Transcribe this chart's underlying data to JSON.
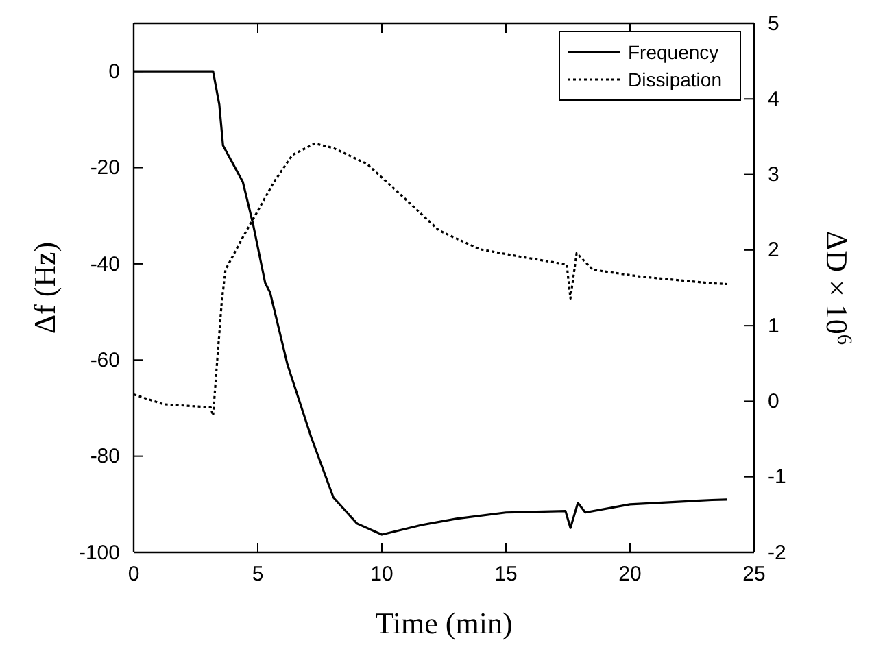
{
  "chart_data": {
    "type": "line",
    "xlabel": "Time (min)",
    "ylabel": "Δf (Hz)",
    "y2label": "ΔD × 10$^{6}$",
    "xlim": [
      0,
      25
    ],
    "xticks": [
      0,
      5,
      10,
      15,
      20,
      25
    ],
    "ylim": [
      -100,
      10
    ],
    "yticks": [
      -100,
      -80,
      -60,
      -40,
      -20,
      0
    ],
    "y2lim": [
      -2,
      5
    ],
    "y2ticks": [
      -2,
      -1,
      0,
      1,
      2,
      3,
      4,
      5
    ],
    "legend": "top right",
    "grid": false,
    "series": [
      {
        "name": "Frequency",
        "color": "#000000",
        "line_style": "solid",
        "x": [
          0,
          1,
          2,
          3.2,
          3.45,
          3.6,
          4.4,
          4.8,
          5.3,
          5.5,
          6.2,
          7.15,
          8.05,
          9.0,
          10,
          11.6,
          13,
          15,
          17.4,
          17.6,
          17.9,
          18.2,
          20,
          23.3,
          23.9
        ],
        "values": [
          0,
          0,
          0,
          0,
          -6.9,
          -15.4,
          -23,
          -31.5,
          -44,
          -46,
          -61,
          -76,
          -88.6,
          -94,
          -96.3,
          -94.3,
          -93,
          -91.7,
          -91.4,
          -94.9,
          -89.7,
          -91.7,
          -90,
          -89.1,
          -89
        ]
      },
      {
        "name": "Dissipation",
        "axis": "y2",
        "color": "#000000",
        "line_style": "dotted",
        "x": [
          0,
          1.2,
          3.1,
          3.2,
          3.35,
          3.55,
          3.7,
          4.4,
          4.9,
          5.65,
          6.4,
          7.3,
          8.05,
          9.4,
          10.8,
          12.3,
          13.95,
          15.8,
          17.45,
          17.6,
          17.85,
          18.5,
          20.4,
          23.3,
          23.9
        ],
        "values": [
          0.09,
          -0.04,
          -0.08,
          -0.19,
          0.47,
          1.32,
          1.74,
          2.17,
          2.46,
          2.9,
          3.26,
          3.41,
          3.35,
          3.14,
          2.72,
          2.26,
          2.01,
          1.9,
          1.81,
          1.36,
          1.96,
          1.74,
          1.65,
          1.56,
          1.55
        ]
      }
    ]
  }
}
